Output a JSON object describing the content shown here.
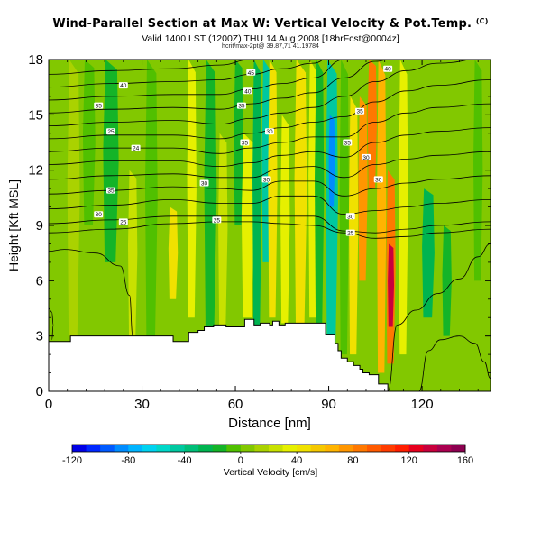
{
  "title": "Wind-Parallel Section at Max W: Vertical Velocity & Pot.Temp.",
  "title_tag": "(C)",
  "subtitle": "Valid 1400 LST (1200Z) THU 14 Aug 2008 [18hrFcst@0004z]",
  "subsubtitle": "hcrit/max-2pt@ 39.87,71 41.19784",
  "chart_data": {
    "type": "heatmap",
    "xlabel": "Distance [nm]",
    "ylabel": "Height [Kft MSL]",
    "xlim": [
      0,
      142
    ],
    "ylim": [
      0,
      18
    ],
    "xticks": [
      0,
      30,
      60,
      90,
      120
    ],
    "yticks": [
      0,
      3,
      6,
      9,
      12,
      15,
      18
    ],
    "colorbar": {
      "label": "Vertical Velocity [cm/s]",
      "ticks": [
        -120,
        -80,
        -40,
        0,
        40,
        80,
        120,
        160
      ],
      "levels": [
        -120,
        -110,
        -100,
        -90,
        -80,
        -70,
        -60,
        -50,
        -40,
        -30,
        -20,
        -10,
        0,
        10,
        20,
        30,
        40,
        50,
        60,
        70,
        80,
        90,
        100,
        110,
        120,
        130,
        140,
        150,
        160
      ],
      "colors": [
        "#0000e6",
        "#0028ff",
        "#005aff",
        "#008cff",
        "#00b4ff",
        "#00d2f0",
        "#00d7c8",
        "#00c8a0",
        "#00be78",
        "#00b450",
        "#14b428",
        "#50c000",
        "#82c800",
        "#aad200",
        "#c8e100",
        "#e6f000",
        "#f0e100",
        "#f5c800",
        "#ffb400",
        "#ff9600",
        "#ff7800",
        "#ff5a00",
        "#ff3c00",
        "#ff1e00",
        "#e6001e",
        "#c8003c",
        "#aa0050",
        "#8c0050"
      ]
    },
    "terrain_profile": {
      "x": [
        0,
        2,
        2,
        7,
        7,
        40,
        40,
        42,
        42,
        43,
        43,
        44,
        44,
        45,
        45,
        48,
        48,
        50,
        50,
        53,
        53,
        57,
        57,
        63,
        63,
        66,
        66,
        68,
        68,
        71,
        71,
        72,
        72,
        74,
        74,
        76,
        76,
        89,
        89,
        92,
        92,
        93,
        93,
        94,
        94,
        96,
        96,
        98,
        98,
        100,
        100,
        101,
        101,
        103,
        103,
        106,
        106,
        109,
        109
      ],
      "y": [
        2.7,
        2.7,
        2.7,
        2.7,
        3.0,
        3.0,
        2.7,
        2.7,
        2.7,
        2.7,
        2.7,
        2.7,
        2.7,
        2.7,
        3.2,
        3.2,
        3.3,
        3.3,
        3.5,
        3.5,
        3.6,
        3.6,
        3.5,
        3.5,
        3.9,
        3.9,
        3.6,
        3.6,
        3.7,
        3.7,
        3.6,
        3.6,
        3.8,
        3.8,
        3.6,
        3.6,
        3.7,
        3.7,
        3.1,
        3.1,
        2.6,
        2.6,
        2.2,
        2.2,
        1.8,
        1.8,
        1.6,
        1.6,
        1.4,
        1.4,
        1.2,
        1.2,
        1.0,
        1.0,
        0.9,
        0.9,
        0.4,
        0.4,
        0.0
      ]
    },
    "vertical_velocity_features": [
      {
        "x_center": 2,
        "width": 5,
        "y_range": [
          2.7,
          18
        ],
        "value": 0
      },
      {
        "x_center": 8,
        "width": 4,
        "y_range": [
          3,
          18
        ],
        "value": 10
      },
      {
        "x_center": 13,
        "width": 4,
        "y_range": [
          9,
          18
        ],
        "value": -10
      },
      {
        "x_center": 20,
        "width": 5,
        "y_range": [
          7,
          18
        ],
        "value": -20
      },
      {
        "x_center": 27,
        "width": 3,
        "y_range": [
          3,
          12
        ],
        "value": 20
      },
      {
        "x_center": 33,
        "width": 4,
        "y_range": [
          3,
          18
        ],
        "value": -10
      },
      {
        "x_center": 40,
        "width": 3,
        "y_range": [
          5,
          10
        ],
        "value": 40
      },
      {
        "x_center": 46,
        "width": 3,
        "y_range": [
          4,
          18
        ],
        "value": 30
      },
      {
        "x_center": 52,
        "width": 4,
        "y_range": [
          3.5,
          18
        ],
        "value": -20
      },
      {
        "x_center": 56,
        "width": 3,
        "y_range": [
          3.6,
          14
        ],
        "value": 20
      },
      {
        "x_center": 61,
        "width": 3,
        "y_range": [
          9,
          18
        ],
        "value": -15
      },
      {
        "x_center": 64,
        "width": 4,
        "y_range": [
          4,
          14
        ],
        "value": 30
      },
      {
        "x_center": 67,
        "width": 3,
        "y_range": [
          3.6,
          18
        ],
        "value": -30
      },
      {
        "x_center": 70,
        "width": 3,
        "y_range": [
          7,
          18
        ],
        "value": -45
      },
      {
        "x_center": 72,
        "width": 3,
        "y_range": [
          4,
          18
        ],
        "value": 40
      },
      {
        "x_center": 76,
        "width": 3,
        "y_range": [
          3.7,
          15
        ],
        "value": 30
      },
      {
        "x_center": 81,
        "width": 4,
        "y_range": [
          3.7,
          18
        ],
        "value": 40
      },
      {
        "x_center": 85,
        "width": 3,
        "y_range": [
          4,
          18
        ],
        "value": 30
      },
      {
        "x_center": 87,
        "width": 3,
        "y_range": [
          3.7,
          18
        ],
        "value": -20
      },
      {
        "x_center": 91,
        "width": 4,
        "y_range": [
          2.5,
          18
        ],
        "value": -50
      },
      {
        "x_center": 91,
        "width": 2,
        "y_range": [
          10,
          15
        ],
        "value": -90
      },
      {
        "x_center": 95,
        "width": 3,
        "y_range": [
          2,
          18
        ],
        "value": -10
      },
      {
        "x_center": 98,
        "width": 3,
        "y_range": [
          2,
          16
        ],
        "value": 40
      },
      {
        "x_center": 101,
        "width": 3,
        "y_range": [
          6,
          16
        ],
        "value": 70
      },
      {
        "x_center": 104,
        "width": 3,
        "y_range": [
          11,
          18
        ],
        "value": 80
      },
      {
        "x_center": 107,
        "width": 3,
        "y_range": [
          1,
          18
        ],
        "value": 60
      },
      {
        "x_center": 110,
        "width": 3,
        "y_range": [
          1.5,
          12
        ],
        "value": 80
      },
      {
        "x_center": 110,
        "width": 2,
        "y_range": [
          3.5,
          8
        ],
        "value": 130
      },
      {
        "x_center": 114,
        "width": 3,
        "y_range": [
          2,
          18
        ],
        "value": 30
      },
      {
        "x_center": 122,
        "width": 4,
        "y_range": [
          4,
          11
        ],
        "value": -30
      },
      {
        "x_center": 128,
        "width": 3,
        "y_range": [
          3,
          9
        ],
        "value": -20
      },
      {
        "x_center": 134,
        "width": 4,
        "y_range": [
          0,
          4
        ],
        "value": 0
      },
      {
        "x_center": 138,
        "width": 3,
        "y_range": [
          6,
          18
        ],
        "value": -10
      }
    ],
    "theta_contours": {
      "label_values": [
        25,
        30,
        35,
        40
      ],
      "lines": [
        {
          "x": [
            0,
            20,
            40,
            55,
            65,
            75,
            85,
            95,
            105,
            115,
            125,
            142
          ],
          "y": [
            8.6,
            8.8,
            9.1,
            9.2,
            9.2,
            9.1,
            9.0,
            8.6,
            8.3,
            8.4,
            8.6,
            8.8
          ]
        },
        {
          "x": [
            0,
            20,
            40,
            55,
            65,
            75,
            85,
            95,
            105,
            115,
            125,
            142
          ],
          "y": [
            9.1,
            9.3,
            9.5,
            9.5,
            9.5,
            9.5,
            9.5,
            8.7,
            8.6,
            8.8,
            9.0,
            9.2
          ]
        },
        {
          "x": [
            0,
            20,
            40,
            55,
            65,
            75,
            85,
            95,
            105,
            115,
            125,
            142
          ],
          "y": [
            9.9,
            10.1,
            10.4,
            10.2,
            10.2,
            10.6,
            10.6,
            9.6,
            9.8,
            10.0,
            10.2,
            10.4
          ]
        },
        {
          "x": [
            0,
            20,
            40,
            55,
            65,
            75,
            85,
            95,
            105,
            115,
            125,
            142
          ],
          "y": [
            10.7,
            10.9,
            11.1,
            11.0,
            10.9,
            11.4,
            11.4,
            10.6,
            11.0,
            11.3,
            11.5,
            11.7
          ]
        },
        {
          "x": [
            0,
            20,
            40,
            55,
            65,
            75,
            85,
            95,
            105,
            115,
            125,
            142
          ],
          "y": [
            11.5,
            11.7,
            11.8,
            11.6,
            11.6,
            12.1,
            12.2,
            11.6,
            12.3,
            12.6,
            12.8,
            13.0
          ]
        },
        {
          "x": [
            0,
            20,
            40,
            55,
            65,
            75,
            85,
            95,
            105,
            115,
            125,
            142
          ],
          "y": [
            12.3,
            12.5,
            12.5,
            12.2,
            12.4,
            12.8,
            13.0,
            12.7,
            13.5,
            13.9,
            14.1,
            14.3
          ]
        },
        {
          "x": [
            0,
            20,
            40,
            55,
            65,
            75,
            85,
            95,
            105,
            115,
            125,
            142
          ],
          "y": [
            13.0,
            13.2,
            13.2,
            12.9,
            13.2,
            13.5,
            13.8,
            13.8,
            14.6,
            15.1,
            15.4,
            15.6
          ]
        },
        {
          "x": [
            0,
            20,
            40,
            55,
            65,
            75,
            85,
            95,
            105,
            115,
            125,
            142
          ],
          "y": [
            13.7,
            13.9,
            13.9,
            13.7,
            14.0,
            14.3,
            14.6,
            14.9,
            15.7,
            16.3,
            16.6,
            16.9
          ]
        },
        {
          "x": [
            0,
            20,
            40,
            55,
            65,
            75,
            85,
            95,
            105,
            115,
            125,
            142
          ],
          "y": [
            14.4,
            14.6,
            14.7,
            14.5,
            14.8,
            15.1,
            15.4,
            16.0,
            16.8,
            17.4,
            17.8,
            18.1
          ]
        },
        {
          "x": [
            0,
            20,
            40,
            55,
            65,
            75,
            85,
            95,
            105,
            115,
            125,
            142
          ],
          "y": [
            15.1,
            15.3,
            15.4,
            15.3,
            15.6,
            15.9,
            16.2,
            17.0,
            17.9,
            18.5,
            18.9,
            19.2
          ]
        },
        {
          "x": [
            0,
            20,
            40,
            55,
            65,
            75,
            85,
            95,
            105,
            115,
            125,
            142
          ],
          "y": [
            15.8,
            16.0,
            16.1,
            16.1,
            16.4,
            16.7,
            17.0,
            18.0,
            19.0,
            19.5,
            20.0,
            20.3
          ]
        },
        {
          "x": [
            0,
            20,
            40,
            55,
            65,
            75,
            85,
            95,
            105,
            115,
            125,
            142
          ],
          "y": [
            16.5,
            16.7,
            16.8,
            16.9,
            17.2,
            17.5,
            17.8,
            19.0,
            20.0,
            20.5,
            21.0,
            21.3
          ]
        },
        {
          "x": [
            0,
            20,
            40,
            55,
            65,
            75,
            85,
            95,
            105,
            115,
            125,
            142
          ],
          "y": [
            17.2,
            17.4,
            17.5,
            17.7,
            18.0,
            18.3,
            18.6,
            20.0,
            21.0,
            21.5,
            22.0,
            22.3
          ]
        }
      ],
      "low_level_lines": [
        {
          "x": [
            0,
            5,
            15,
            23,
            26,
            27
          ],
          "y": [
            7.6,
            7.7,
            7.5,
            6.8,
            5.2,
            3.0
          ]
        },
        {
          "x": [
            0,
            1,
            1.5,
            1
          ],
          "y": [
            4.5,
            4.3,
            3.6,
            2.8
          ]
        },
        {
          "x": [
            109,
            112,
            118,
            125,
            132,
            138,
            142
          ],
          "y": [
            0,
            3.6,
            4.4,
            5.3,
            6.1,
            7.3,
            8.0
          ]
        },
        {
          "x": [
            119,
            122,
            126,
            132,
            137,
            140,
            142
          ],
          "y": [
            0,
            2.2,
            2.8,
            3.0,
            2.6,
            1.6,
            0.7
          ]
        }
      ],
      "labels": [
        {
          "text": "40",
          "x": 24,
          "y": 16.6
        },
        {
          "text": "35",
          "x": 16,
          "y": 15.5
        },
        {
          "text": "25",
          "x": 20,
          "y": 14.1
        },
        {
          "text": "24",
          "x": 28,
          "y": 13.2
        },
        {
          "text": "35",
          "x": 20,
          "y": 10.9
        },
        {
          "text": "30",
          "x": 16,
          "y": 9.6
        },
        {
          "text": "25",
          "x": 24,
          "y": 9.2
        },
        {
          "text": "45",
          "x": 65,
          "y": 17.3
        },
        {
          "text": "40",
          "x": 64,
          "y": 16.3
        },
        {
          "text": "35",
          "x": 62,
          "y": 15.5
        },
        {
          "text": "30",
          "x": 71,
          "y": 14.1
        },
        {
          "text": "35",
          "x": 63,
          "y": 13.5
        },
        {
          "text": "30",
          "x": 50,
          "y": 11.3
        },
        {
          "text": "30",
          "x": 70,
          "y": 11.5
        },
        {
          "text": "25",
          "x": 54,
          "y": 9.3
        },
        {
          "text": "40",
          "x": 109,
          "y": 17.5
        },
        {
          "text": "35",
          "x": 100,
          "y": 15.2
        },
        {
          "text": "35",
          "x": 96,
          "y": 13.5
        },
        {
          "text": "30",
          "x": 102,
          "y": 12.7
        },
        {
          "text": "30",
          "x": 106,
          "y": 11.5
        },
        {
          "text": "30",
          "x": 97,
          "y": 9.5
        },
        {
          "text": "25",
          "x": 97,
          "y": 8.6
        }
      ]
    }
  }
}
